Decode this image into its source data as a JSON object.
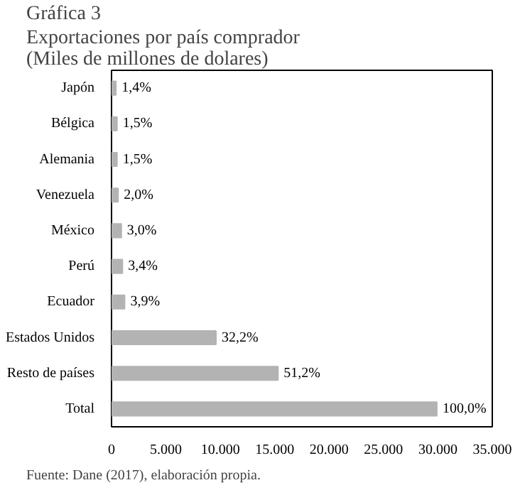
{
  "chart_data": {
    "type": "bar",
    "orientation": "horizontal",
    "title": "Gráfica 3",
    "subtitle": "Exportaciones por país comprador (Miles de millones de dolares)",
    "categories": [
      "Japón",
      "Bélgica",
      "Alemania",
      "Venezuela",
      "México",
      "Perú",
      "Ecuador",
      "Estados Unidos",
      "Resto de países",
      "Total"
    ],
    "values": [
      400,
      500,
      500,
      600,
      900,
      1000,
      1200,
      9600,
      15300,
      29900
    ],
    "color": "#b3b3b3",
    "xlim": [
      0,
      35000
    ],
    "xticks": [
      0,
      {
        "value": 5000,
        "label": "5.000"
      },
      {
        "value": 10000,
        "label": "10.000"
      },
      {
        "value": 15000,
        "label": "15.000"
      },
      {
        "value": 20000,
        "label": "20.000"
      },
      {
        "value": 25000,
        "label": "25.000"
      },
      {
        "value": 30000,
        "label": "30.000"
      },
      {
        "value": 35000,
        "label": "35.000"
      }
    ],
    "grid": false,
    "annotations": [
      {
        "text": "1,4%",
        "x": 400,
        "y": "Japón"
      },
      {
        "text": "1,5%",
        "x": 500,
        "y": "Bélgica"
      },
      {
        "text": "1,5%",
        "x": 500,
        "y": "Alemania"
      },
      {
        "text": "2,0%",
        "x": 600,
        "y": "Venezuela"
      },
      {
        "text": "3,0%",
        "x": 900,
        "y": "México"
      },
      {
        "text": "3,4%",
        "x": 1000,
        "y": "Perú"
      },
      {
        "text": "3,9%",
        "x": 1200,
        "y": "Ecuador"
      },
      {
        "text": "32,2%",
        "x": 9600,
        "y": "Estados Unidos"
      },
      {
        "text": "51,2%",
        "x": 15300,
        "y": "Resto de países"
      },
      {
        "text": "100,0%",
        "x": 29900,
        "y": "Total"
      },
      "Fuente: Dane (2017), elaboración propia."
    ]
  }
}
